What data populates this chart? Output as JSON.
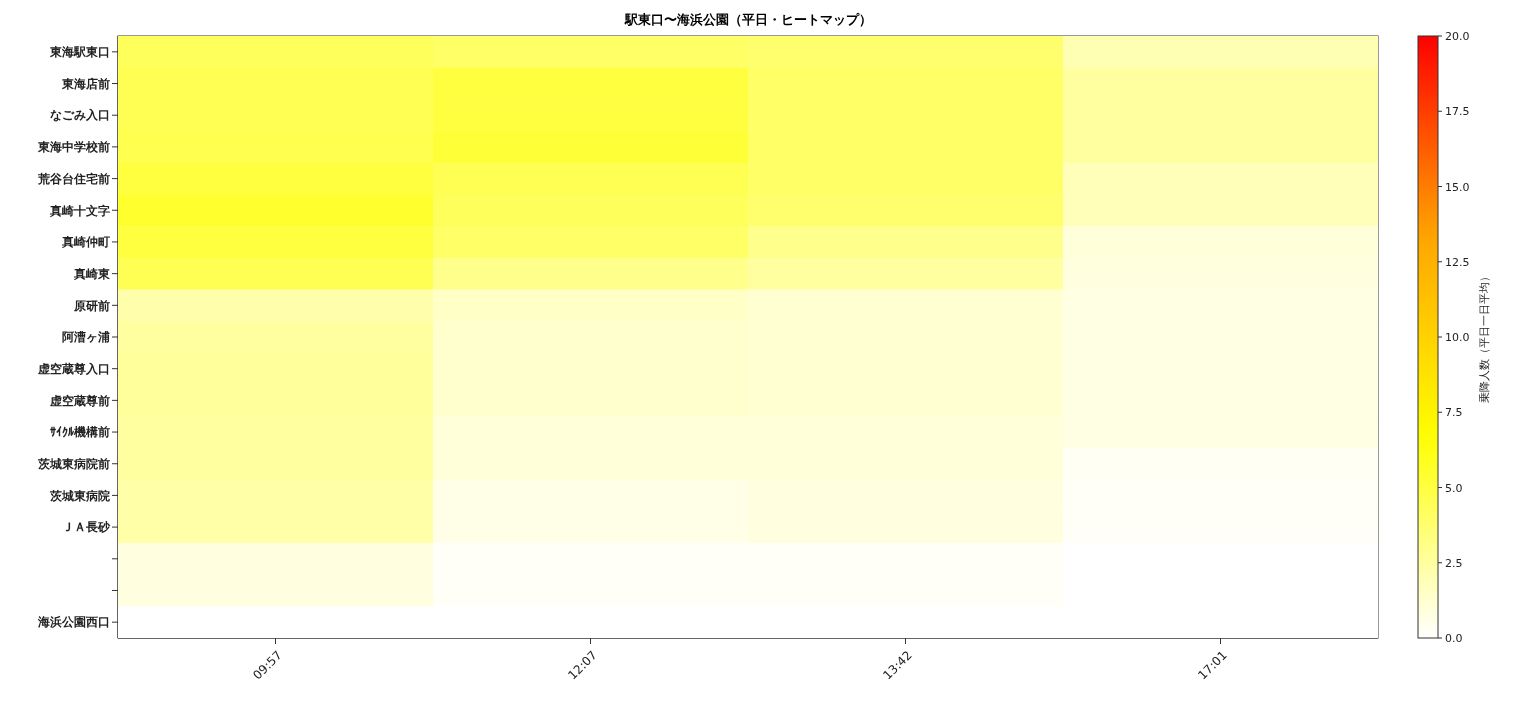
{
  "chart_data": {
    "type": "heatmap",
    "title": "駅東口〜海浜公園（平日・ヒートマップ）",
    "categories": [
      "09:57",
      "12:07",
      "13:42",
      "17:01"
    ],
    "y_categories": [
      "東海駅東口",
      "東海店前",
      "なごみ入口",
      "東海中学校前",
      "荒谷台住宅前",
      "真崎十文字",
      "真崎仲町",
      "真崎東",
      "原研前",
      "阿漕ヶ浦",
      "虚空蔵尊入口",
      "虚空蔵尊前",
      "ｻｲｸﾙ機構前",
      "茨城東病院前",
      "茨城東病院",
      "ＪＡ長砂",
      null,
      null,
      "海浜公園西口"
    ],
    "cells": [
      [
        4.3,
        4.0,
        3.8,
        2.0
      ],
      [
        4.5,
        5.0,
        4.0,
        2.5
      ],
      [
        4.5,
        5.0,
        4.0,
        2.5
      ],
      [
        4.6,
        5.2,
        4.0,
        2.5
      ],
      [
        5.0,
        4.5,
        4.0,
        1.8
      ],
      [
        5.5,
        4.3,
        3.8,
        1.8
      ],
      [
        5.0,
        4.0,
        3.0,
        1.0
      ],
      [
        4.5,
        3.0,
        2.5,
        0.8
      ],
      [
        2.2,
        1.5,
        1.2,
        0.7
      ],
      [
        2.5,
        1.3,
        1.2,
        0.7
      ],
      [
        2.6,
        1.3,
        1.2,
        0.7
      ],
      [
        2.6,
        1.3,
        1.2,
        0.7
      ],
      [
        2.5,
        1.0,
        1.0,
        0.7
      ],
      [
        2.5,
        1.0,
        1.0,
        0.3
      ],
      [
        2.3,
        0.6,
        0.8,
        0.2
      ],
      [
        2.3,
        0.6,
        0.8,
        0.2
      ],
      [
        0.8,
        0.2,
        0.2,
        0
      ],
      [
        0.8,
        0.2,
        0.2,
        0
      ],
      [
        0,
        0,
        0,
        0
      ]
    ],
    "clim": [
      0,
      20
    ],
    "cticks": [
      {
        "value": 0,
        "label": "0.0"
      },
      2.5,
      {
        "value": 5,
        "label": "5.0"
      },
      7.5,
      {
        "value": 10,
        "label": "10.0"
      },
      12.5,
      {
        "value": 15,
        "label": "15.0"
      },
      17.5,
      {
        "value": 20,
        "label": "20.0"
      }
    ],
    "clabel": "乗降人数（平日一日平均）"
  }
}
